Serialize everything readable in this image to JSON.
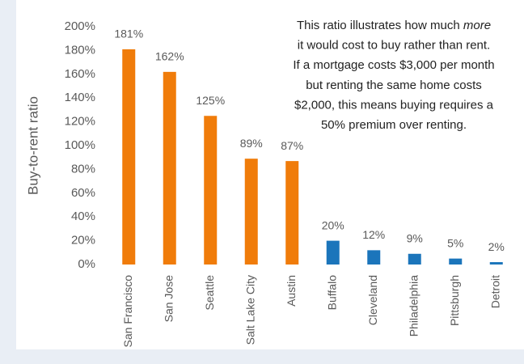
{
  "chart_data": {
    "type": "bar",
    "y_label": "Buy-to-rent ratio",
    "categories": [
      "San Francisco",
      "San Jose",
      "Seattle",
      "Salt Lake City",
      "Austin",
      "Buffalo",
      "Cleveland",
      "Philadelphia",
      "Pittsburgh",
      "Detroit"
    ],
    "values": [
      181,
      162,
      125,
      89,
      87,
      20,
      12,
      9,
      5,
      2
    ],
    "value_labels": [
      "181%",
      "162%",
      "125%",
      "89%",
      "87%",
      "20%",
      "12%",
      "9%",
      "5%",
      "2%"
    ],
    "colors": [
      "#f07c0a",
      "#f07c0a",
      "#f07c0a",
      "#f07c0a",
      "#f07c0a",
      "#1b75bb",
      "#1b75bb",
      "#1b75bb",
      "#1b75bb",
      "#1b75bb"
    ],
    "ylim": [
      0,
      200
    ],
    "yticks": [
      {
        "value": 0,
        "label": "0%"
      },
      {
        "value": 20,
        "label": "20%"
      },
      {
        "value": 40,
        "label": "40%"
      },
      {
        "value": 60,
        "label": "60%"
      },
      {
        "value": 80,
        "label": "80%"
      },
      {
        "value": 100,
        "label": "100%"
      },
      {
        "value": 120,
        "label": "120%"
      },
      {
        "value": 140,
        "label": "140%"
      },
      {
        "value": 160,
        "label": "160%"
      },
      {
        "value": 180,
        "label": "180%"
      },
      {
        "value": 200,
        "label": "200%"
      }
    ],
    "grid": false,
    "annotation": [
      [
        {
          "text": "This ratio illustrates how much "
        },
        {
          "text": "more",
          "style": "italic"
        }
      ],
      [
        {
          "text": "it would cost to buy rather than rent."
        }
      ],
      [
        {
          "text": "If a mortgage costs $3,000 per month"
        }
      ],
      [
        {
          "text": "but renting the same home costs"
        }
      ],
      [
        {
          "text": "$2,000, this means buying requires a"
        }
      ],
      [
        {
          "text": "50% premium over renting."
        }
      ]
    ]
  }
}
